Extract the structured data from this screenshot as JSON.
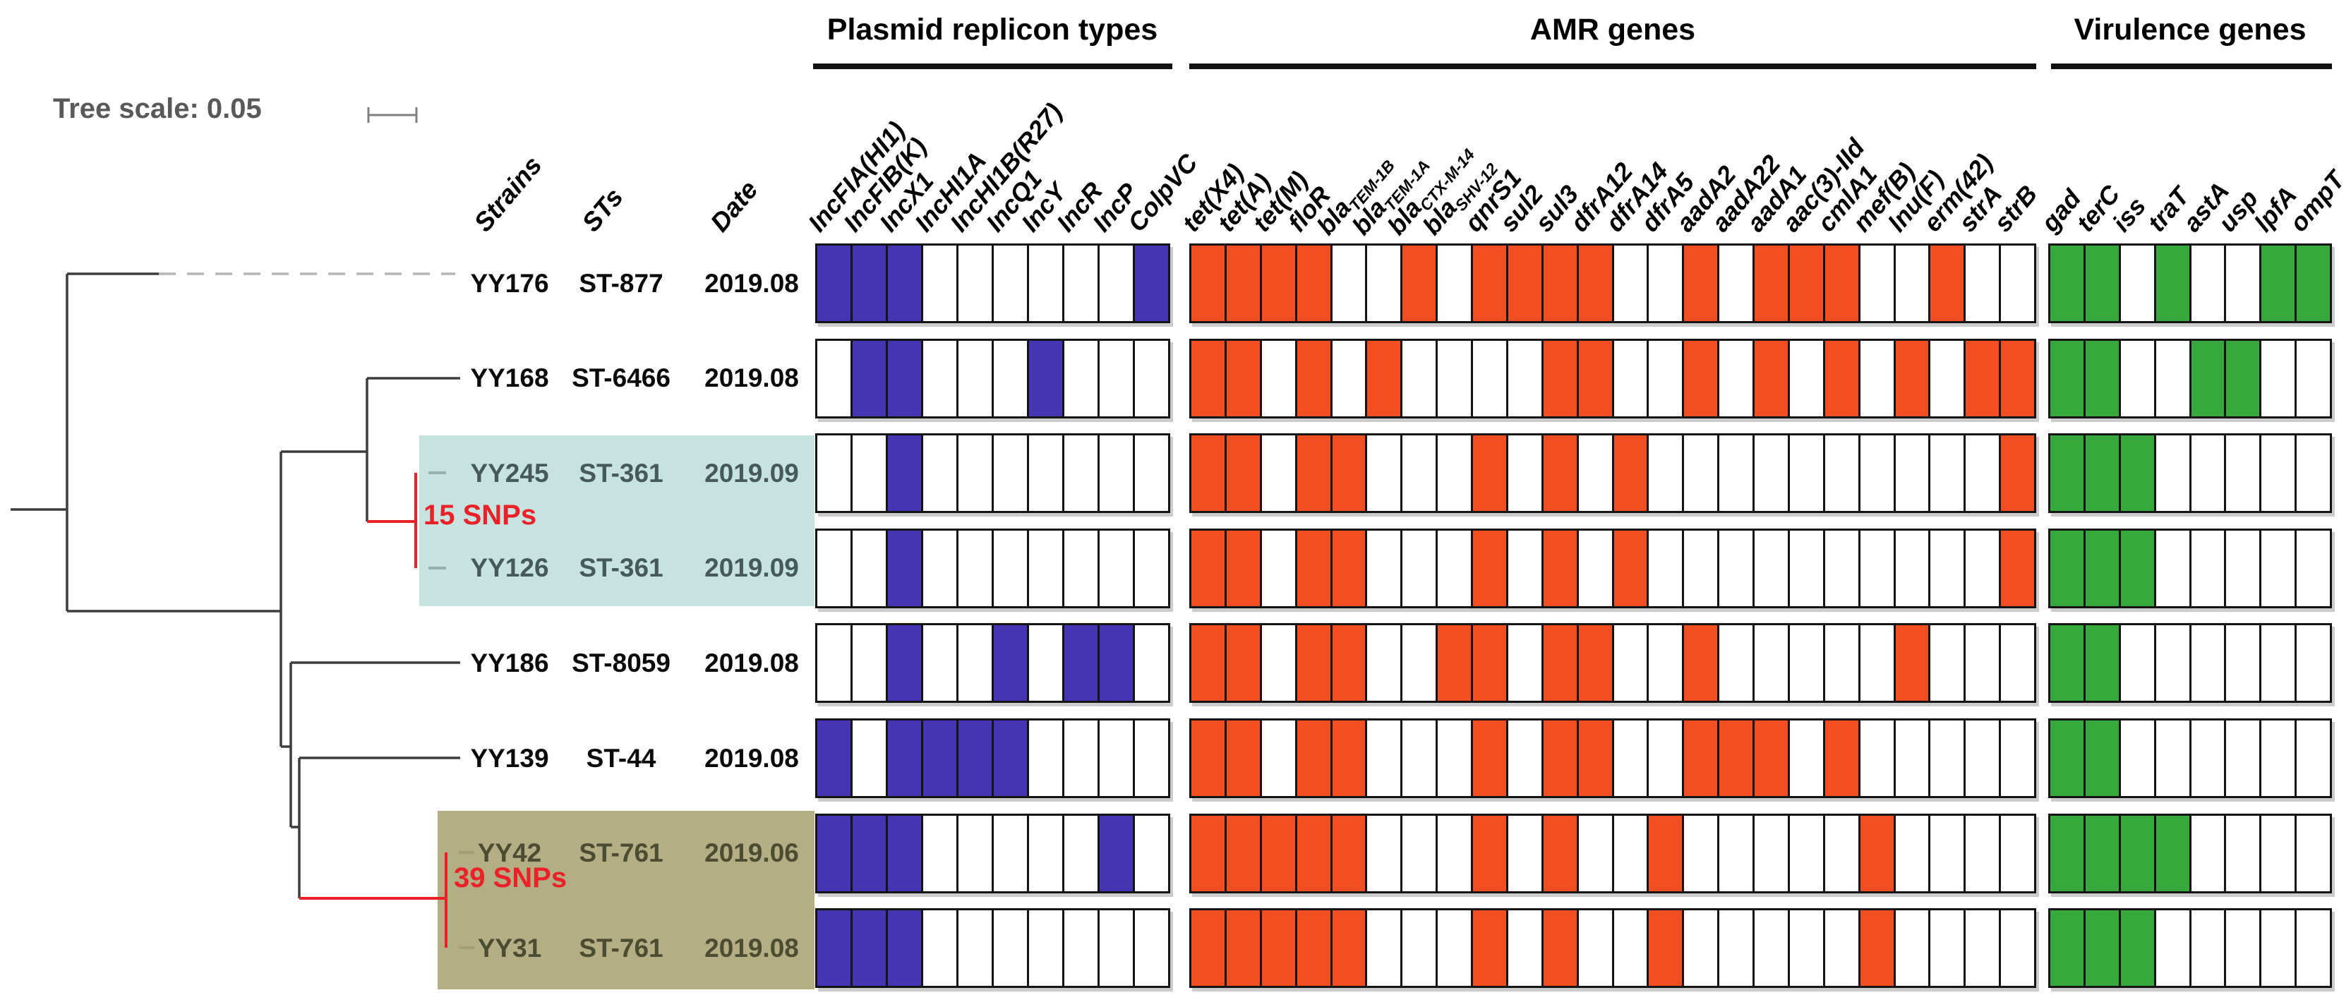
{
  "colors": {
    "plasmid_presence": "#4535b2",
    "amr_presence": "#f24e21",
    "virulence_presence": "#37a93c",
    "absence": "#ffffff",
    "cell_border": "#141414",
    "teal_highlight": "#c6e3e0",
    "olive_highlight": "#b4ae85",
    "snp_red": "#ea2127",
    "tree_branch": "#3d3d3d",
    "dashed_branch": "#b5b5b5",
    "teal_row_text": "#47595b",
    "olive_row_text": "#4c4c32",
    "tree_scale_text": "#595959"
  },
  "chart_data": {
    "type": "heatmap",
    "tree_scale_label": "Tree scale: 0.05",
    "meta_columns": [
      "Strains",
      "STs",
      "Date"
    ],
    "sections": [
      {
        "key": "plasmid",
        "title": "Plasmid replicon types",
        "presence_color": "#4535b2",
        "columns": [
          "IncFIA(HI1)",
          "IncFIB(K)",
          "IncX1",
          "IncHI1A",
          "IncHI1B(R27)",
          "IncQ1",
          "IncY",
          "IncR",
          "IncP",
          "ColpVC"
        ]
      },
      {
        "key": "amr",
        "title": "AMR genes",
        "presence_color": "#f24e21",
        "columns": [
          "tet(X4)",
          "tet(A)",
          "tet(M)",
          "floR",
          "bla[TEM-1B]",
          "bla[TEM-1A]",
          "bla[CTX-M-14]",
          "bla[SHV-12]",
          "qnrS1",
          "sul2",
          "sul3",
          "dfrA12",
          "dfrA14",
          "dfrA5",
          "aadA2",
          "aadA22",
          "aadA1",
          "aac(3)-IId",
          "cmlA1",
          "mef(B)",
          "lnu(F)",
          "erm(42)",
          "strA",
          "strB"
        ]
      },
      {
        "key": "virulence",
        "title": "Virulence genes",
        "presence_color": "#37a93c",
        "columns": [
          "gad",
          "terC",
          "iss",
          "traT",
          "astA",
          "usp",
          "lpfA",
          "ompT"
        ]
      }
    ],
    "rows": [
      {
        "strain": "YY176",
        "st": "ST-877",
        "date": "2019.08",
        "highlight": "none",
        "plasmid": [
          1,
          1,
          1,
          0,
          0,
          0,
          0,
          0,
          0,
          1
        ],
        "amr": [
          1,
          1,
          1,
          1,
          0,
          0,
          1,
          0,
          1,
          1,
          1,
          1,
          0,
          0,
          1,
          0,
          1,
          1,
          1,
          0,
          0,
          1,
          0,
          0
        ],
        "virulence": [
          1,
          1,
          0,
          1,
          0,
          0,
          1,
          1
        ]
      },
      {
        "strain": "YY168",
        "st": "ST-6466",
        "date": "2019.08",
        "highlight": "none",
        "plasmid": [
          0,
          1,
          1,
          0,
          0,
          0,
          1,
          0,
          0,
          0
        ],
        "amr": [
          1,
          1,
          0,
          1,
          0,
          1,
          0,
          0,
          0,
          0,
          1,
          1,
          0,
          0,
          1,
          0,
          1,
          0,
          1,
          0,
          1,
          0,
          1,
          1
        ],
        "virulence": [
          1,
          1,
          0,
          0,
          1,
          1,
          0,
          0
        ]
      },
      {
        "strain": "YY245",
        "st": "ST-361",
        "date": "2019.09",
        "highlight": "teal",
        "plasmid": [
          0,
          0,
          1,
          0,
          0,
          0,
          0,
          0,
          0,
          0
        ],
        "amr": [
          1,
          1,
          0,
          1,
          1,
          0,
          0,
          0,
          1,
          0,
          1,
          0,
          1,
          0,
          0,
          0,
          0,
          0,
          0,
          0,
          0,
          0,
          0,
          1
        ],
        "virulence": [
          1,
          1,
          1,
          0,
          0,
          0,
          0,
          0
        ]
      },
      {
        "strain": "YY126",
        "st": "ST-361",
        "date": "2019.09",
        "highlight": "teal",
        "plasmid": [
          0,
          0,
          1,
          0,
          0,
          0,
          0,
          0,
          0,
          0
        ],
        "amr": [
          1,
          1,
          0,
          1,
          1,
          0,
          0,
          0,
          1,
          0,
          1,
          0,
          1,
          0,
          0,
          0,
          0,
          0,
          0,
          0,
          0,
          0,
          0,
          1
        ],
        "virulence": [
          1,
          1,
          1,
          0,
          0,
          0,
          0,
          0
        ]
      },
      {
        "strain": "YY186",
        "st": "ST-8059",
        "date": "2019.08",
        "highlight": "none",
        "plasmid": [
          0,
          0,
          1,
          0,
          0,
          1,
          0,
          1,
          1,
          0
        ],
        "amr": [
          1,
          1,
          0,
          1,
          1,
          0,
          0,
          1,
          1,
          0,
          1,
          1,
          0,
          0,
          1,
          0,
          0,
          0,
          0,
          0,
          1,
          0,
          0,
          0
        ],
        "virulence": [
          1,
          1,
          0,
          0,
          0,
          0,
          0,
          0
        ]
      },
      {
        "strain": "YY139",
        "st": "ST-44",
        "date": "2019.08",
        "highlight": "none",
        "plasmid": [
          1,
          0,
          1,
          1,
          1,
          1,
          0,
          0,
          0,
          0
        ],
        "amr": [
          1,
          1,
          0,
          1,
          1,
          0,
          0,
          0,
          1,
          0,
          1,
          1,
          0,
          0,
          1,
          1,
          1,
          0,
          1,
          0,
          0,
          0,
          0,
          0
        ],
        "virulence": [
          1,
          1,
          0,
          0,
          0,
          0,
          0,
          0
        ]
      },
      {
        "strain": "YY42",
        "st": "ST-761",
        "date": "2019.06",
        "highlight": "olive",
        "plasmid": [
          1,
          1,
          1,
          0,
          0,
          0,
          0,
          0,
          1,
          0
        ],
        "amr": [
          1,
          1,
          1,
          1,
          1,
          0,
          0,
          0,
          1,
          0,
          1,
          0,
          0,
          1,
          0,
          0,
          0,
          0,
          0,
          1,
          0,
          0,
          0,
          0
        ],
        "virulence": [
          1,
          1,
          1,
          1,
          0,
          0,
          0,
          0
        ]
      },
      {
        "strain": "YY31",
        "st": "ST-761",
        "date": "2019.08",
        "highlight": "olive",
        "plasmid": [
          1,
          1,
          1,
          0,
          0,
          0,
          0,
          0,
          0,
          0
        ],
        "amr": [
          1,
          1,
          1,
          1,
          1,
          0,
          0,
          0,
          1,
          0,
          1,
          0,
          0,
          1,
          0,
          0,
          0,
          0,
          0,
          1,
          0,
          0,
          0,
          0
        ],
        "virulence": [
          1,
          1,
          1,
          0,
          0,
          0,
          0,
          0
        ]
      }
    ],
    "clade_annotations": [
      {
        "label": "15 SNPs",
        "strains": [
          "YY245",
          "YY126"
        ]
      },
      {
        "label": "39 SNPs",
        "strains": [
          "YY42",
          "YY31"
        ]
      }
    ]
  }
}
